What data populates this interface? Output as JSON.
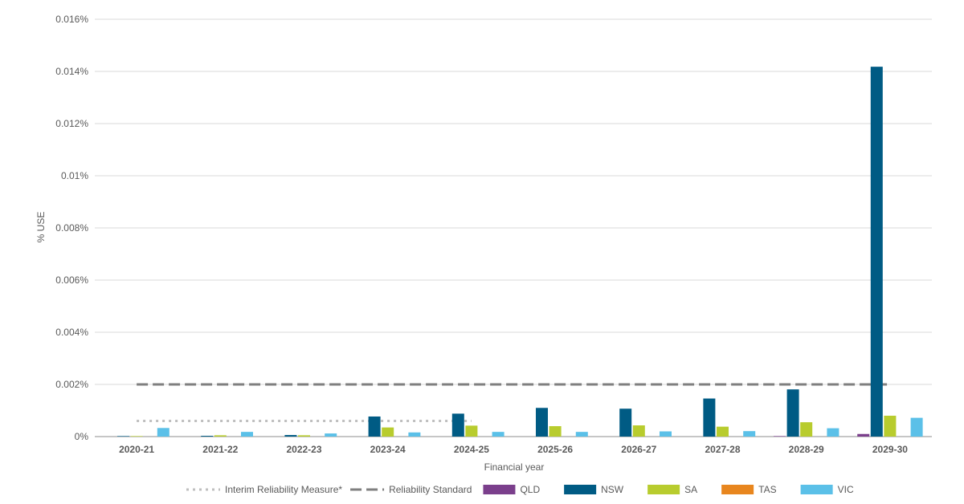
{
  "chart_data": {
    "type": "bar",
    "title": "",
    "xlabel": "Financial year",
    "ylabel": "% USE",
    "ylim": [
      0,
      0.016
    ],
    "yticks": [
      {
        "value": 0,
        "label": "0%"
      },
      {
        "value": 0.002,
        "label": "0.002%"
      },
      {
        "value": 0.004,
        "label": "0.004%"
      },
      {
        "value": 0.006,
        "label": "0.006%"
      },
      {
        "value": 0.008,
        "label": "0.008%"
      },
      {
        "value": 0.01,
        "label": "0.01%"
      },
      {
        "value": 0.012,
        "label": "0.012%"
      },
      {
        "value": 0.014,
        "label": "0.014%"
      },
      {
        "value": 0.016,
        "label": "0.016%"
      }
    ],
    "grid": true,
    "legend_position": "bottom",
    "categories": [
      "2020-21",
      "2021-22",
      "2022-23",
      "2023-24",
      "2024-25",
      "2025-26",
      "2026-27",
      "2027-28",
      "2028-29",
      "2029-30"
    ],
    "series": [
      {
        "name": "QLD",
        "color": "#7B3F8C",
        "values": [
          0,
          0,
          0,
          0,
          0,
          0,
          0,
          0,
          2e-05,
          0.0001
        ]
      },
      {
        "name": "NSW",
        "color": "#005B84",
        "values": [
          2e-05,
          3e-05,
          6e-05,
          0.00077,
          0.00088,
          0.0011,
          0.00107,
          0.00146,
          0.00181,
          0.01418
        ]
      },
      {
        "name": "SA",
        "color": "#B8CC2E",
        "values": [
          2e-05,
          5e-05,
          5e-05,
          0.00035,
          0.00042,
          0.0004,
          0.00043,
          0.00038,
          0.00055,
          0.0008
        ]
      },
      {
        "name": "TAS",
        "color": "#E8861E",
        "values": [
          0,
          0,
          0,
          0,
          0,
          0,
          0,
          0,
          0,
          0
        ]
      },
      {
        "name": "VIC",
        "color": "#5BC0E8",
        "values": [
          0.00033,
          0.00018,
          0.00012,
          0.00016,
          0.00018,
          0.00018,
          0.0002,
          0.00021,
          0.00032,
          0.00072
        ]
      }
    ],
    "reference_lines": [
      {
        "name": "Interim Reliability Measure*",
        "value": 0.0006,
        "style": "dotted",
        "color": "#BFBFBF",
        "from_category": "2020-21",
        "to_category": "2024-25"
      },
      {
        "name": "Reliability Standard",
        "value": 0.002,
        "style": "dashed",
        "color": "#7F7F7F",
        "from_category": "2020-21",
        "to_category": "2029-30"
      }
    ]
  }
}
